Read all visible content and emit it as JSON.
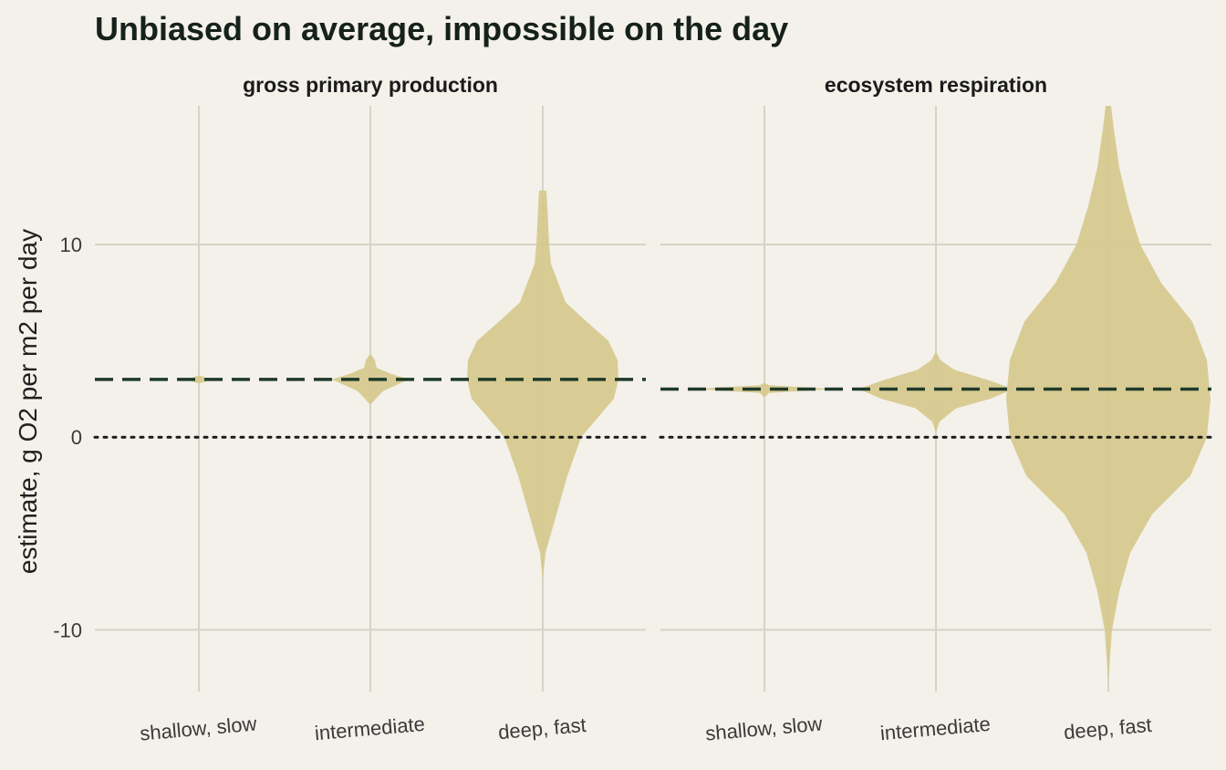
{
  "chart_data": {
    "type": "violin",
    "title": "Unbiased on average, impossible on the day",
    "ylabel": "estimate, g O2 per m2 per day",
    "xlabel": "",
    "ylim": [
      -13.2,
      17.2
    ],
    "yticks": [
      -10,
      0,
      10
    ],
    "categories": [
      "shallow, slow",
      "intermediate",
      "deep, fast"
    ],
    "reference_lines": {
      "zero": 0,
      "style": "dotted"
    },
    "fill_color": "#d6c98f",
    "mean_line_color": "#1f3a2a",
    "grid": true,
    "facets": [
      {
        "name": "gross primary production",
        "true_value": 3.0,
        "violins": [
          {
            "category": "shallow, slow",
            "min": 2.8,
            "max": 3.2,
            "profile": [
              [
                2.8,
                1.0
              ],
              [
                2.9,
                8
              ],
              [
                3.0,
                10
              ],
              [
                3.1,
                7
              ],
              [
                3.2,
                1.0
              ]
            ]
          },
          {
            "category": "intermediate",
            "min": 1.7,
            "max": 4.3,
            "profile": [
              [
                1.7,
                0.5
              ],
              [
                2.0,
                6
              ],
              [
                2.4,
                14
              ],
              [
                2.7,
                28
              ],
              [
                3.0,
                42
              ],
              [
                3.3,
                22
              ],
              [
                3.6,
                7
              ],
              [
                4.0,
                5
              ],
              [
                4.3,
                0.5
              ]
            ]
          },
          {
            "category": "deep, fast",
            "min": -7.3,
            "max": 12.8,
            "profile": [
              [
                -7.3,
                0.3
              ],
              [
                -6,
                3
              ],
              [
                -4,
                15
              ],
              [
                -2,
                27
              ],
              [
                0,
                42
              ],
              [
                2,
                78
              ],
              [
                3,
                83
              ],
              [
                4,
                82
              ],
              [
                5,
                72
              ],
              [
                6,
                48
              ],
              [
                7,
                25
              ],
              [
                8,
                17
              ],
              [
                9,
                9
              ],
              [
                10,
                7
              ],
              [
                11,
                6
              ],
              [
                12,
                5
              ],
              [
                12.8,
                4
              ]
            ]
          }
        ]
      },
      {
        "name": "ecosystem respiration",
        "true_value": 2.5,
        "violins": [
          {
            "category": "shallow, slow",
            "min": 2.1,
            "max": 2.8,
            "profile": [
              [
                2.1,
                1.0
              ],
              [
                2.3,
                5
              ],
              [
                2.5,
                76
              ],
              [
                2.7,
                5
              ],
              [
                2.8,
                1.0
              ]
            ]
          },
          {
            "category": "intermediate",
            "min": 0.3,
            "max": 4.4,
            "profile": [
              [
                0.3,
                0.5
              ],
              [
                0.8,
                4
              ],
              [
                1.5,
                22
              ],
              [
                2.0,
                60
              ],
              [
                2.5,
                85
              ],
              [
                3.0,
                55
              ],
              [
                3.5,
                20
              ],
              [
                4.0,
                5
              ],
              [
                4.4,
                0.5
              ]
            ]
          },
          {
            "category": "deep, fast",
            "min": -12.5,
            "max": 17.2,
            "profile": [
              [
                -12.5,
                0.3
              ],
              [
                -10,
                4
              ],
              [
                -8,
                12
              ],
              [
                -6,
                24
              ],
              [
                -4,
                48
              ],
              [
                -2,
                90
              ],
              [
                0,
                108
              ],
              [
                2,
                112
              ],
              [
                4,
                108
              ],
              [
                6,
                92
              ],
              [
                8,
                58
              ],
              [
                10,
                35
              ],
              [
                12,
                22
              ],
              [
                14,
                12
              ],
              [
                16,
                6
              ],
              [
                17.2,
                3
              ]
            ]
          }
        ]
      }
    ]
  }
}
